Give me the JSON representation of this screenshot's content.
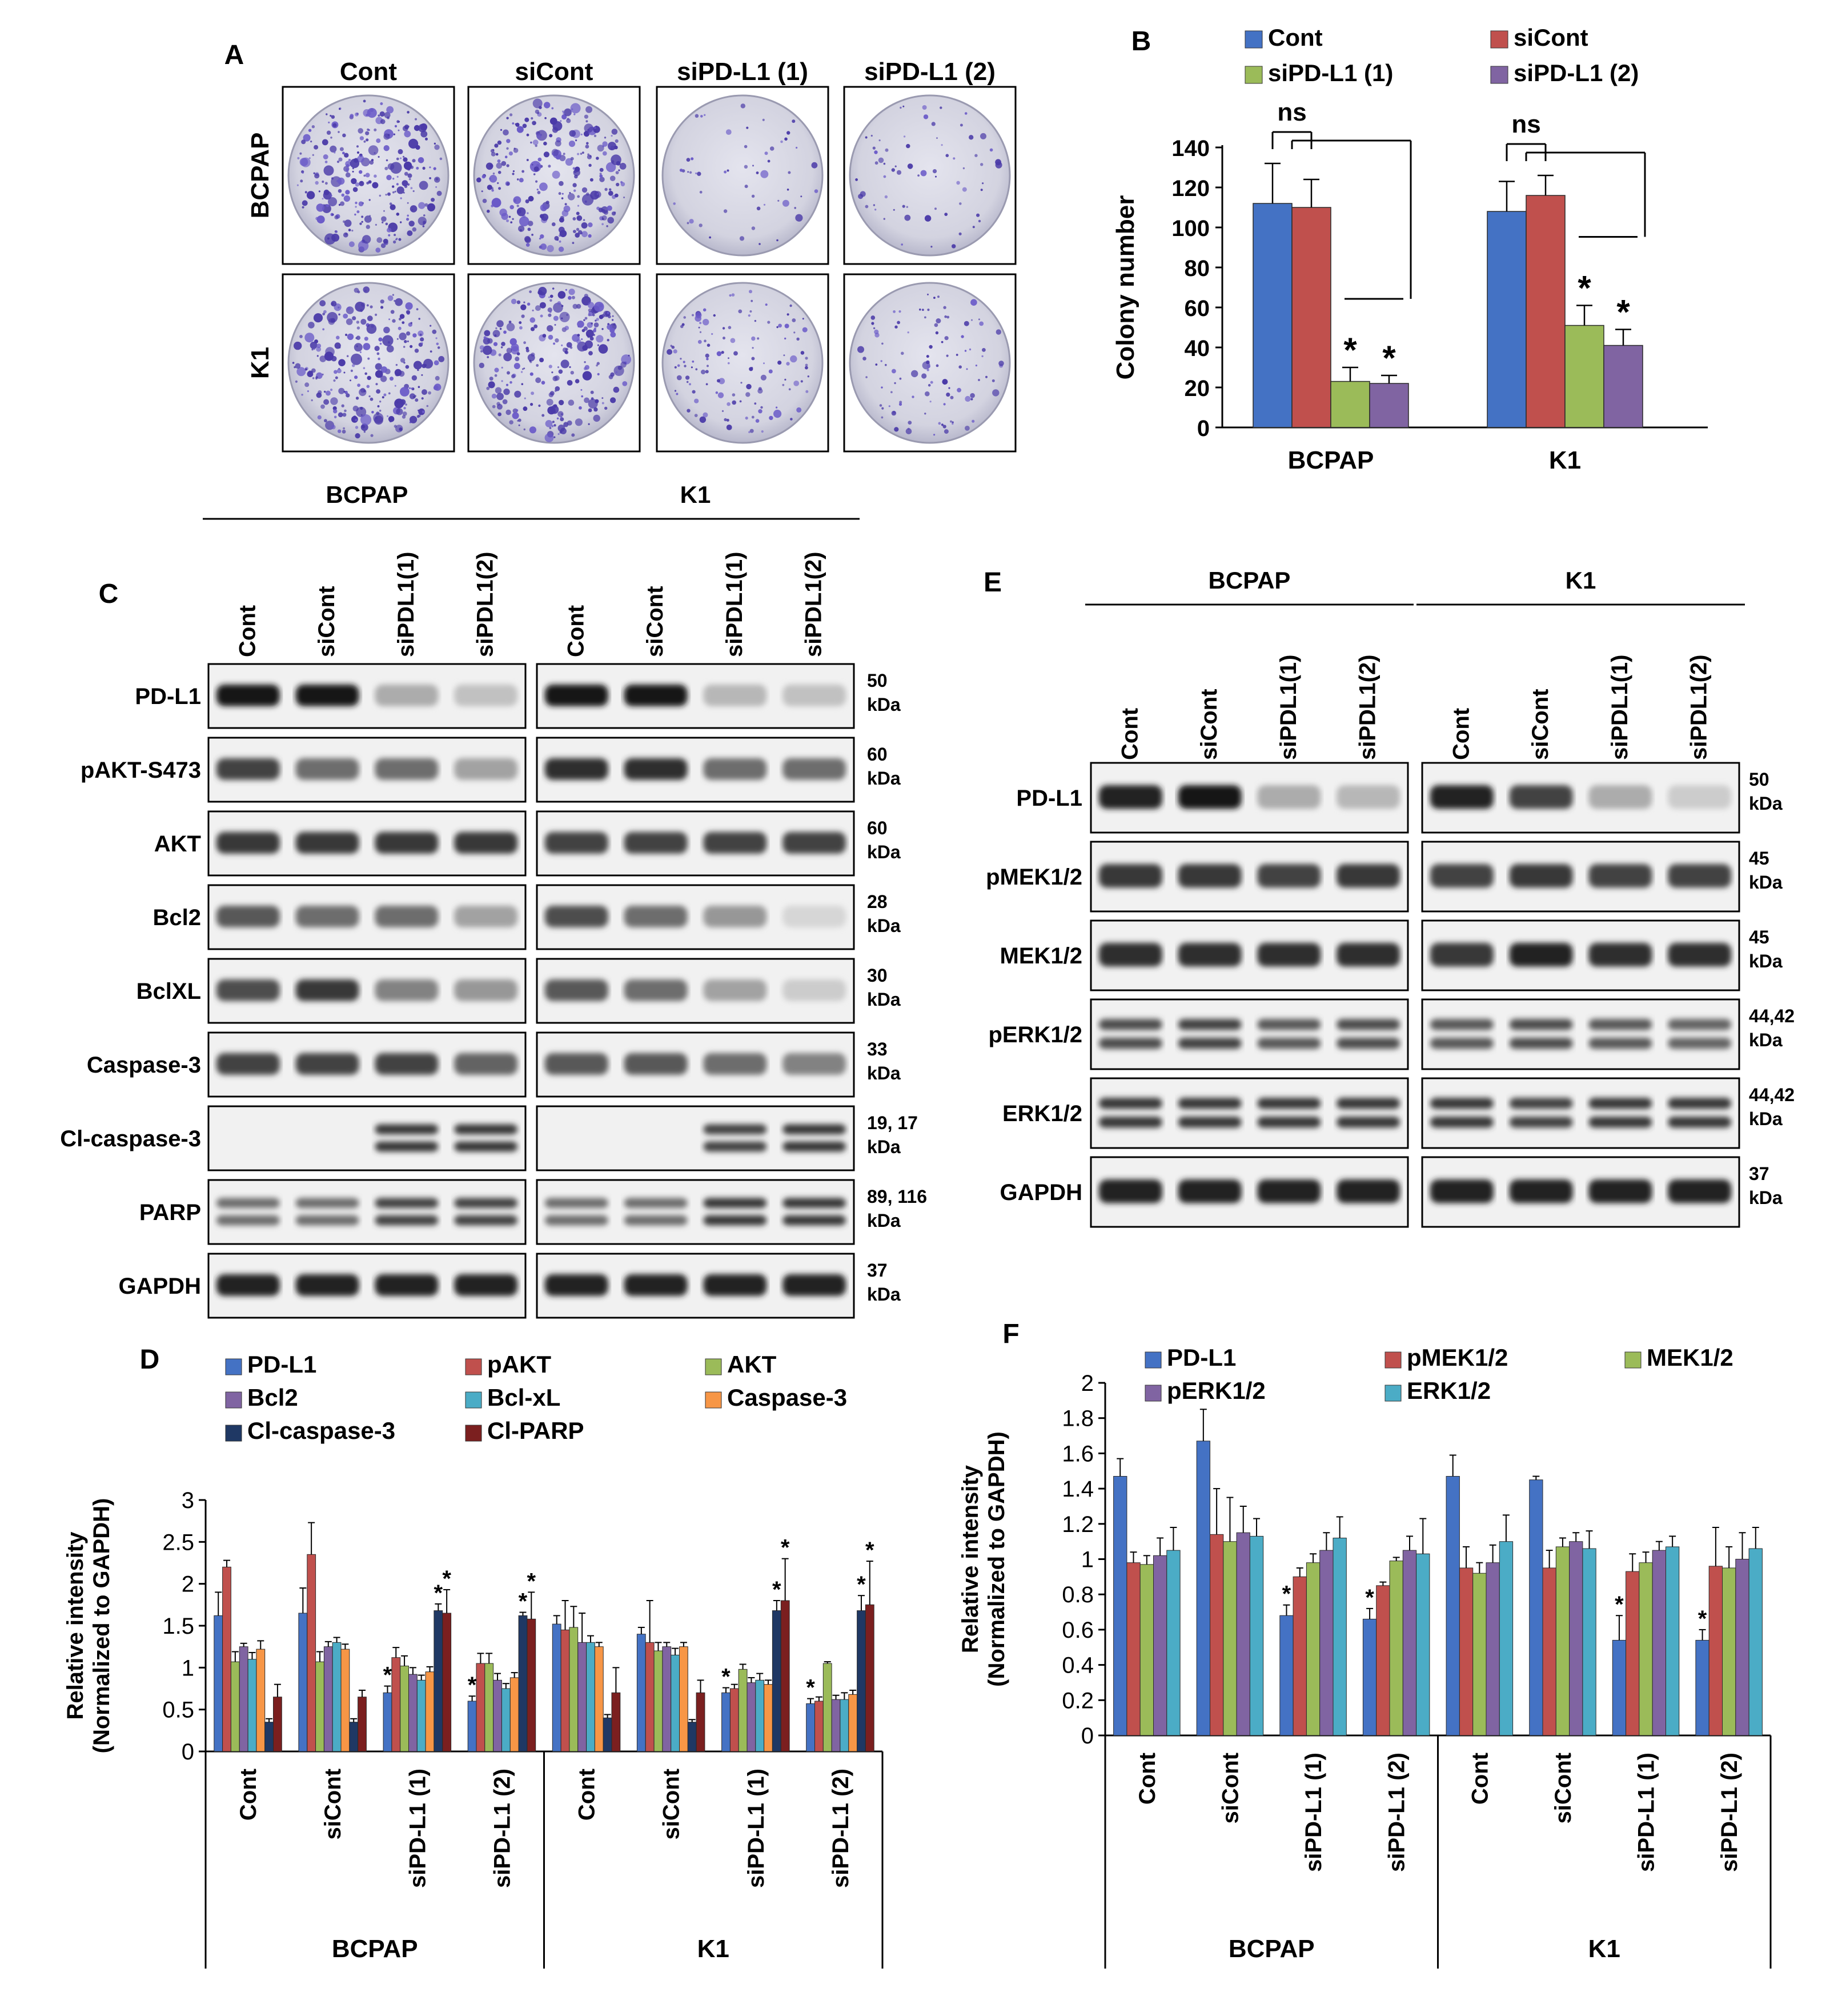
{
  "panels": {
    "A": {
      "letter": "A",
      "columns": [
        "Cont",
        "siCont",
        "siPD-L1 (1)",
        "siPD-L1 (2)"
      ],
      "rows": [
        "BCPAP",
        "K1"
      ],
      "colony_density": [
        [
          1,
          1,
          0.15,
          0.2
        ],
        [
          1,
          1,
          0.45,
          0.35
        ]
      ]
    },
    "B": {
      "letter": "B",
      "ns_label": "ns",
      "sig_label": "*"
    },
    "C": {
      "letter": "C",
      "group_labels": [
        "BCPAP",
        "K1"
      ],
      "lane_labels": [
        "Cont",
        "siCont",
        "siPDL1(1)",
        "siPDL1(2)"
      ],
      "proteins": [
        {
          "name": "PD-L1",
          "size_line1": "50",
          "size_line2": "kDa",
          "band": [
            1,
            1,
            0.3,
            0.2
          ],
          "band_k1": [
            1,
            1,
            0.25,
            0.2
          ]
        },
        {
          "name": "pAKT-S473",
          "size_line1": "60",
          "size_line2": "kDa",
          "band": [
            0.8,
            0.6,
            0.6,
            0.35
          ],
          "band_k1": [
            0.9,
            0.9,
            0.6,
            0.6
          ]
        },
        {
          "name": "AKT",
          "size_line1": "60",
          "size_line2": "kDa",
          "band": [
            0.85,
            0.85,
            0.85,
            0.85
          ],
          "band_k1": [
            0.8,
            0.8,
            0.8,
            0.8
          ]
        },
        {
          "name": "Bcl2",
          "size_line1": "28",
          "size_line2": "kDa",
          "band": [
            0.7,
            0.6,
            0.6,
            0.35
          ],
          "band_k1": [
            0.75,
            0.6,
            0.4,
            0.1
          ]
        },
        {
          "name": "BclXL",
          "size_line1": "30",
          "size_line2": "kDa",
          "band": [
            0.75,
            0.85,
            0.5,
            0.4
          ],
          "band_k1": [
            0.7,
            0.6,
            0.35,
            0.15
          ]
        },
        {
          "name": "Caspase-3",
          "size_line1": "33",
          "size_line2": "kDa",
          "band": [
            0.8,
            0.8,
            0.8,
            0.65
          ],
          "band_k1": [
            0.7,
            0.7,
            0.6,
            0.5
          ]
        },
        {
          "name": "Cl-caspase-3",
          "size_line1": "19, 17",
          "size_line2": "kDa",
          "band": [
            0,
            0,
            0.85,
            0.85
          ],
          "band_k1": [
            0,
            0,
            0.8,
            0.85
          ]
        },
        {
          "name": "PARP",
          "size_line1": "89, 116",
          "size_line2": "kDa",
          "band": [
            0.6,
            0.6,
            0.8,
            0.8
          ],
          "band_k1": [
            0.6,
            0.6,
            0.85,
            0.85
          ]
        },
        {
          "name": "GAPDH",
          "size_line1": "37",
          "size_line2": "kDa",
          "band": [
            0.95,
            0.95,
            0.95,
            0.95
          ],
          "band_k1": [
            0.95,
            0.95,
            0.95,
            0.95
          ]
        }
      ]
    },
    "D": {
      "letter": "D"
    },
    "E": {
      "letter": "E",
      "group_labels": [
        "BCPAP",
        "K1"
      ],
      "lane_labels": [
        "Cont",
        "siCont",
        "siPDL1(1)",
        "siPDL1(2)"
      ],
      "proteins": [
        {
          "name": "PD-L1",
          "size_line1": "50",
          "size_line2": "kDa",
          "band": [
            0.95,
            1,
            0.3,
            0.25
          ],
          "band_k1": [
            0.95,
            0.8,
            0.3,
            0.15
          ]
        },
        {
          "name": "pMEK1/2",
          "size_line1": "45",
          "size_line2": "kDa",
          "band": [
            0.85,
            0.85,
            0.8,
            0.85
          ],
          "band_k1": [
            0.8,
            0.85,
            0.8,
            0.8
          ]
        },
        {
          "name": "MEK1/2",
          "size_line1": "45",
          "size_line2": "kDa",
          "band": [
            0.9,
            0.9,
            0.9,
            0.9
          ],
          "band_k1": [
            0.85,
            0.95,
            0.9,
            0.9
          ]
        },
        {
          "name": "pERK1/2",
          "size_line1": "44,42",
          "size_line2": "kDa",
          "band": [
            0.75,
            0.8,
            0.7,
            0.75
          ],
          "band_k1": [
            0.7,
            0.75,
            0.7,
            0.65
          ]
        },
        {
          "name": "ERK1/2",
          "size_line1": "44,42",
          "size_line2": "kDa",
          "band": [
            0.85,
            0.85,
            0.85,
            0.85
          ],
          "band_k1": [
            0.85,
            0.8,
            0.85,
            0.85
          ]
        },
        {
          "name": "GAPDH",
          "size_line1": "37",
          "size_line2": "kDa",
          "band": [
            0.95,
            0.95,
            0.95,
            0.95
          ],
          "band_k1": [
            0.95,
            0.95,
            0.95,
            0.95
          ]
        }
      ]
    },
    "F": {
      "letter": "F"
    }
  },
  "chart_data": [
    {
      "id": "B",
      "type": "bar",
      "categories": [
        "BCPAP",
        "K1"
      ],
      "series": [
        {
          "name": "Cont",
          "color": "#4472c4",
          "values": [
            112,
            108
          ],
          "errors": [
            20,
            15
          ]
        },
        {
          "name": "siCont",
          "color": "#c0504d",
          "values": [
            110,
            116
          ],
          "errors": [
            14,
            10
          ]
        },
        {
          "name": "siPD-L1 (1)",
          "color": "#9bbb59",
          "values": [
            23,
            51
          ],
          "errors": [
            7,
            10
          ]
        },
        {
          "name": "siPD-L1 (2)",
          "color": "#8064a2",
          "values": [
            22,
            41
          ],
          "errors": [
            4,
            8
          ]
        }
      ],
      "significant": [
        [
          false,
          false,
          true,
          true
        ],
        [
          false,
          false,
          true,
          true
        ]
      ],
      "ylabel": "Colony number",
      "ylim": [
        0,
        140
      ],
      "yticks": [
        0,
        20,
        40,
        60,
        80,
        100,
        120,
        140
      ],
      "legend_placement": "top"
    },
    {
      "id": "D",
      "type": "bar",
      "groups": [
        "BCPAP",
        "K1"
      ],
      "categories": [
        "Cont",
        "siCont",
        "siPD-L1 (1)",
        "siPD-L1 (2)",
        "Cont",
        "siCont",
        "siPD-L1 (1)",
        "siPD-L1 (2)"
      ],
      "series": [
        {
          "name": "PD-L1",
          "color": "#4472c4",
          "values": [
            1.62,
            1.65,
            0.7,
            0.6,
            1.52,
            1.4,
            0.7,
            0.57
          ],
          "errors": [
            0.28,
            0.3,
            0.08,
            0.06,
            0.1,
            0.08,
            0.06,
            0.06
          ]
        },
        {
          "name": "pAKT",
          "color": "#c0504d",
          "values": [
            2.2,
            2.35,
            1.12,
            1.05,
            1.45,
            1.3,
            0.75,
            0.6
          ],
          "errors": [
            0.08,
            0.38,
            0.12,
            0.12,
            0.35,
            0.5,
            0.05,
            0.05
          ]
        },
        {
          "name": "AKT",
          "color": "#9bbb59",
          "values": [
            1.07,
            1.07,
            1.02,
            1.05,
            1.48,
            1.2,
            0.98,
            1.05
          ],
          "errors": [
            0.12,
            0.12,
            0.12,
            0.12,
            0.25,
            0.1,
            0.06,
            0.02
          ]
        },
        {
          "name": "Bcl2",
          "color": "#8064a2",
          "values": [
            1.25,
            1.25,
            0.92,
            0.85,
            1.3,
            1.25,
            0.82,
            0.62
          ],
          "errors": [
            0.04,
            0.06,
            0.08,
            0.08,
            0.35,
            0.05,
            0.06,
            0.05
          ]
        },
        {
          "name": "Bcl-xL",
          "color": "#4bacc6",
          "values": [
            1.1,
            1.3,
            0.85,
            0.75,
            1.3,
            1.15,
            0.85,
            0.62
          ],
          "errors": [
            0.08,
            0.06,
            0.06,
            0.06,
            0.08,
            0.08,
            0.08,
            0.08
          ]
        },
        {
          "name": "Caspase-3",
          "color": "#f79646",
          "values": [
            1.22,
            1.22,
            0.95,
            0.88,
            1.25,
            1.25,
            0.8,
            0.68
          ],
          "errors": [
            0.1,
            0.06,
            0.06,
            0.06,
            0.05,
            0.05,
            0.05,
            0.05
          ]
        },
        {
          "name": "Cl-caspase-3",
          "color": "#1f3864",
          "values": [
            0.35,
            0.35,
            1.68,
            1.62,
            0.4,
            0.35,
            1.68,
            1.68
          ],
          "errors": [
            0.04,
            0.04,
            0.08,
            0.04,
            0.04,
            0.03,
            0.12,
            0.18
          ]
        },
        {
          "name": "Cl-PARP",
          "color": "#7b1f1f",
          "values": [
            0.65,
            0.65,
            1.65,
            1.58,
            0.7,
            0.7,
            1.8,
            1.75
          ],
          "errors": [
            0.15,
            0.08,
            0.28,
            0.32,
            0.3,
            0.15,
            0.5,
            0.52
          ]
        }
      ],
      "ylabel": "Relative intensity (Normalized to GAPDH)",
      "ylabel_line1": "Relative intensity",
      "ylabel_line2": "(Normalized to GAPDH)",
      "ylim": [
        0,
        3
      ],
      "yticks": [
        0,
        0.5,
        1,
        1.5,
        2,
        2.5,
        3
      ],
      "legend_placement": "top",
      "significant_categories": [
        2,
        3,
        6,
        7
      ]
    },
    {
      "id": "F",
      "type": "bar",
      "groups": [
        "BCPAP",
        "K1"
      ],
      "categories": [
        "Cont",
        "siCont",
        "siPD-L1 (1)",
        "siPD-L1 (2)",
        "Cont",
        "siCont",
        "siPD-L1 (1)",
        "siPD-L1 (2)"
      ],
      "series": [
        {
          "name": "PD-L1",
          "color": "#4472c4",
          "values": [
            1.47,
            1.67,
            0.68,
            0.66,
            1.47,
            1.45,
            0.54,
            0.54
          ],
          "errors": [
            0.1,
            0.18,
            0.06,
            0.06,
            0.12,
            0.02,
            0.14,
            0.06
          ]
        },
        {
          "name": "pMEK1/2",
          "color": "#c0504d",
          "values": [
            0.98,
            1.14,
            0.9,
            0.85,
            0.95,
            0.95,
            0.93,
            0.96
          ],
          "errors": [
            0.06,
            0.26,
            0.05,
            0.02,
            0.12,
            0.1,
            0.1,
            0.22
          ]
        },
        {
          "name": "MEK1/2",
          "color": "#9bbb59",
          "values": [
            0.97,
            1.1,
            0.98,
            0.99,
            0.92,
            1.07,
            0.98,
            0.95
          ],
          "errors": [
            0.05,
            0.25,
            0.05,
            0.02,
            0.06,
            0.05,
            0.06,
            0.12
          ]
        },
        {
          "name": "pERK1/2",
          "color": "#8064a2",
          "values": [
            1.02,
            1.15,
            1.05,
            1.05,
            0.98,
            1.1,
            1.05,
            1.0
          ],
          "errors": [
            0.1,
            0.15,
            0.1,
            0.08,
            0.1,
            0.05,
            0.05,
            0.15
          ]
        },
        {
          "name": "ERK1/2",
          "color": "#4bacc6",
          "values": [
            1.05,
            1.13,
            1.12,
            1.03,
            1.1,
            1.06,
            1.07,
            1.06
          ],
          "errors": [
            0.13,
            0.1,
            0.12,
            0.2,
            0.15,
            0.1,
            0.06,
            0.12
          ]
        }
      ],
      "ylabel": "Relative intensity (Normalized to GAPDH)",
      "ylabel_line1": "Relative intensity",
      "ylabel_line2": "(Normalized to GAPDH)",
      "ylim": [
        0,
        2
      ],
      "yticks": [
        0,
        0.2,
        0.4,
        0.6,
        0.8,
        1,
        1.2,
        1.4,
        1.6,
        1.8,
        2
      ],
      "legend_placement": "top",
      "significant_categories": [
        2,
        3,
        6,
        7
      ]
    }
  ]
}
